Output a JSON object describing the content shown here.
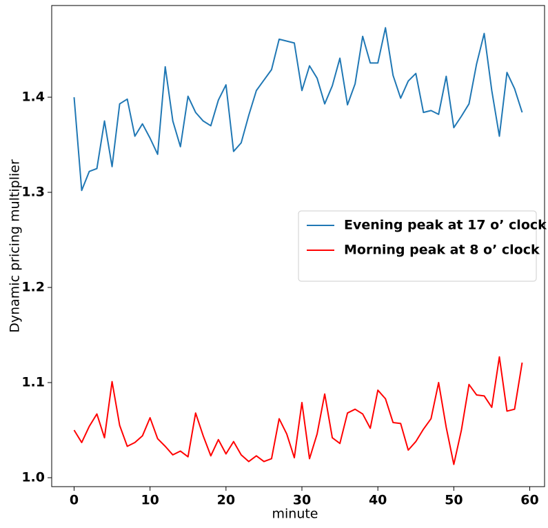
{
  "chart_data": {
    "type": "line",
    "xlabel": "minute",
    "ylabel": "Dynamic pricing multiplier",
    "x": [
      0,
      1,
      2,
      3,
      4,
      5,
      6,
      7,
      8,
      9,
      10,
      11,
      12,
      13,
      14,
      15,
      16,
      17,
      18,
      19,
      20,
      21,
      22,
      23,
      24,
      25,
      26,
      27,
      28,
      29,
      30,
      31,
      32,
      33,
      34,
      35,
      36,
      37,
      38,
      39,
      40,
      41,
      42,
      43,
      44,
      45,
      46,
      47,
      48,
      49,
      50,
      51,
      52,
      53,
      54,
      55,
      56,
      57,
      58,
      59
    ],
    "series": [
      {
        "name": "Evening peak at 17 o’ clock",
        "color": "#1f77b4",
        "values": [
          1.4,
          1.302,
          1.322,
          1.325,
          1.375,
          1.327,
          1.393,
          1.398,
          1.359,
          1.372,
          1.357,
          1.34,
          1.432,
          1.375,
          1.348,
          1.401,
          1.384,
          1.375,
          1.37,
          1.397,
          1.413,
          1.343,
          1.352,
          1.381,
          1.407,
          1.418,
          1.429,
          1.461,
          1.459,
          1.457,
          1.407,
          1.433,
          1.42,
          1.393,
          1.412,
          1.441,
          1.392,
          1.414,
          1.464,
          1.436,
          1.436,
          1.473,
          1.423,
          1.399,
          1.417,
          1.425,
          1.384,
          1.386,
          1.382,
          1.422,
          1.368,
          1.38,
          1.393,
          1.435,
          1.467,
          1.407,
          1.359,
          1.426,
          1.409,
          1.384
        ]
      },
      {
        "name": "Morning peak at 8 o’ clock",
        "color": "#ff0000",
        "values": [
          1.05,
          1.037,
          1.054,
          1.067,
          1.042,
          1.101,
          1.055,
          1.033,
          1.037,
          1.044,
          1.063,
          1.041,
          1.033,
          1.024,
          1.028,
          1.022,
          1.068,
          1.044,
          1.023,
          1.04,
          1.025,
          1.038,
          1.024,
          1.017,
          1.023,
          1.017,
          1.02,
          1.062,
          1.046,
          1.021,
          1.079,
          1.02,
          1.046,
          1.088,
          1.042,
          1.036,
          1.068,
          1.072,
          1.067,
          1.052,
          1.092,
          1.083,
          1.058,
          1.057,
          1.029,
          1.038,
          1.051,
          1.062,
          1.1,
          1.053,
          1.014,
          1.05,
          1.098,
          1.087,
          1.086,
          1.074,
          1.127,
          1.07,
          1.072,
          1.121
        ]
      }
    ],
    "xlim": [
      -2.95,
      61.95
    ],
    "xticks": [
      0,
      10,
      20,
      30,
      40,
      50,
      60
    ],
    "ylim": [
      0.9906,
      1.4964
    ],
    "yticks": [
      {
        "value": 1.0,
        "label": "1.0"
      },
      1.1,
      1.2,
      1.3,
      1.4
    ],
    "legend": "center right",
    "grid": false
  }
}
